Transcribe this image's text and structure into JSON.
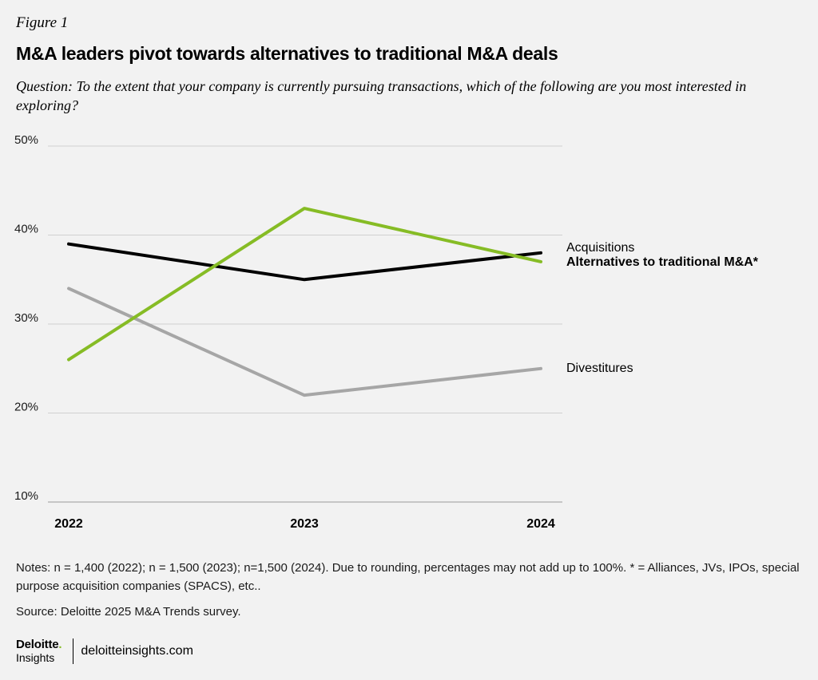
{
  "header": {
    "figure_label": "Figure 1",
    "title": "M&A leaders pivot towards alternatives to traditional M&A deals",
    "question": "Question: To the extent that your company is currently pursuing transactions, which of the following are you most interested in exploring?"
  },
  "chart_data": {
    "type": "line",
    "categories": [
      "2022",
      "2023",
      "2024"
    ],
    "y_tick_labels": [
      "10%",
      "20%",
      "30%",
      "40%",
      "50%"
    ],
    "ylim": [
      10,
      50
    ],
    "grid": true,
    "series": [
      {
        "name": "Divestitures",
        "values": [
          34,
          22,
          25
        ],
        "color": "#a6a6a6",
        "bold_label": false
      },
      {
        "name": "Acquisitions",
        "values": [
          39,
          35,
          38
        ],
        "color": "#000000",
        "bold_label": false
      },
      {
        "name": "Alternatives to traditional M&A*",
        "values": [
          26,
          43,
          37
        ],
        "color": "#86bc25",
        "bold_label": true
      }
    ]
  },
  "footer": {
    "notes": "Notes: n = 1,400 (2022); n = 1,500 (2023); n=1,500 (2024). Due to rounding, percentages may not add up to 100%. * = Alliances, JVs, IPOs, special purpose acquisition companies (SPACS), etc..",
    "source": "Source: Deloitte 2025 M&A Trends survey.",
    "logo_name": "Deloitte",
    "logo_dot": ".",
    "logo_sub": "Insights",
    "site": "deloitteinsights.com"
  }
}
